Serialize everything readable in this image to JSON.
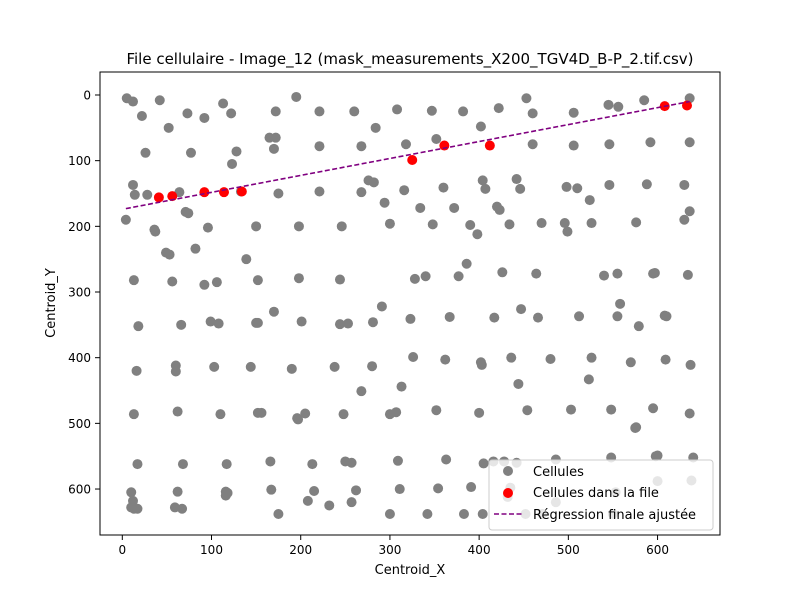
{
  "chart_data": {
    "type": "scatter",
    "title": "File cellulaire - Image_12 (mask_measurements_X200_TGV4D_B-P_2.tif.csv)",
    "xlabel": "Centroid_X",
    "ylabel": "Centroid_Y",
    "xlim": [
      -25,
      670
    ],
    "ylim": [
      670,
      -35
    ],
    "y_inverted": true,
    "x_ticks": [
      0,
      100,
      200,
      300,
      400,
      500,
      600
    ],
    "y_ticks": [
      0,
      100,
      200,
      300,
      400,
      500,
      600
    ],
    "grid": false,
    "legend_position": "lower right",
    "colors": {
      "cells": "#808080",
      "file": "#ff0000",
      "regression": "#800080"
    },
    "series": [
      {
        "name": "Cellules",
        "kind": "scatter",
        "points": [
          [
            5,
            5
          ],
          [
            12,
            10
          ],
          [
            42,
            8
          ],
          [
            73,
            28
          ],
          [
            92,
            35
          ],
          [
            113,
            13
          ],
          [
            122,
            28
          ],
          [
            195,
            3
          ],
          [
            172,
            25
          ],
          [
            221,
            25
          ],
          [
            260,
            25
          ],
          [
            308,
            22
          ],
          [
            347,
            24
          ],
          [
            382,
            25
          ],
          [
            422,
            20
          ],
          [
            453,
            5
          ],
          [
            460,
            28
          ],
          [
            506,
            27
          ],
          [
            545,
            15
          ],
          [
            556,
            18
          ],
          [
            585,
            8
          ],
          [
            636,
            5
          ],
          [
            22,
            32
          ],
          [
            52,
            50
          ],
          [
            77,
            88
          ],
          [
            26,
            88
          ],
          [
            128,
            86
          ],
          [
            123,
            105
          ],
          [
            165,
            65
          ],
          [
            172,
            65
          ],
          [
            170,
            82
          ],
          [
            221,
            78
          ],
          [
            284,
            50
          ],
          [
            268,
            78
          ],
          [
            318,
            75
          ],
          [
            352,
            67
          ],
          [
            402,
            48
          ],
          [
            460,
            75
          ],
          [
            506,
            77
          ],
          [
            546,
            75
          ],
          [
            592,
            72
          ],
          [
            636,
            72
          ],
          [
            12,
            137
          ],
          [
            14,
            152
          ],
          [
            28,
            152
          ],
          [
            64,
            148
          ],
          [
            71,
            178
          ],
          [
            74,
            180
          ],
          [
            133,
            147
          ],
          [
            175,
            150
          ],
          [
            221,
            147
          ],
          [
            268,
            148
          ],
          [
            276,
            130
          ],
          [
            282,
            133
          ],
          [
            294,
            164
          ],
          [
            316,
            145
          ],
          [
            334,
            172
          ],
          [
            348,
            197
          ],
          [
            360,
            141
          ],
          [
            372,
            172
          ],
          [
            404,
            130
          ],
          [
            407,
            143
          ],
          [
            420,
            170
          ],
          [
            423,
            175
          ],
          [
            434,
            197
          ],
          [
            442,
            128
          ],
          [
            446,
            143
          ],
          [
            470,
            195
          ],
          [
            496,
            195
          ],
          [
            498,
            140
          ],
          [
            510,
            142
          ],
          [
            524,
            160
          ],
          [
            526,
            195
          ],
          [
            546,
            137
          ],
          [
            588,
            136
          ],
          [
            576,
            194
          ],
          [
            630,
            137
          ],
          [
            630,
            190
          ],
          [
            636,
            177
          ],
          [
            4,
            190
          ],
          [
            36,
            205
          ],
          [
            37,
            208
          ],
          [
            49,
            240
          ],
          [
            53,
            243
          ],
          [
            82,
            234
          ],
          [
            96,
            202
          ],
          [
            106,
            285
          ],
          [
            92,
            289
          ],
          [
            13,
            282
          ],
          [
            56,
            284
          ],
          [
            139,
            250
          ],
          [
            150,
            200
          ],
          [
            152,
            282
          ],
          [
            198,
            200
          ],
          [
            198,
            279
          ],
          [
            246,
            200
          ],
          [
            244,
            281
          ],
          [
            300,
            196
          ],
          [
            328,
            280
          ],
          [
            340,
            276
          ],
          [
            377,
            276
          ],
          [
            386,
            257
          ],
          [
            390,
            198
          ],
          [
            398,
            212
          ],
          [
            426,
            270
          ],
          [
            464,
            272
          ],
          [
            499,
            208
          ],
          [
            540,
            275
          ],
          [
            555,
            272
          ],
          [
            558,
            318
          ],
          [
            595,
            272
          ],
          [
            597,
            271
          ],
          [
            634,
            274
          ],
          [
            18,
            352
          ],
          [
            66,
            350
          ],
          [
            99,
            345
          ],
          [
            108,
            348
          ],
          [
            150,
            347
          ],
          [
            152,
            347
          ],
          [
            170,
            330
          ],
          [
            201,
            345
          ],
          [
            244,
            349
          ],
          [
            253,
            348
          ],
          [
            281,
            346
          ],
          [
            291,
            322
          ],
          [
            323,
            341
          ],
          [
            367,
            338
          ],
          [
            417,
            339
          ],
          [
            447,
            326
          ],
          [
            466,
            339
          ],
          [
            512,
            337
          ],
          [
            555,
            337
          ],
          [
            579,
            352
          ],
          [
            608,
            336
          ],
          [
            610,
            337
          ],
          [
            16,
            420
          ],
          [
            60,
            412
          ],
          [
            60,
            421
          ],
          [
            103,
            414
          ],
          [
            144,
            414
          ],
          [
            190,
            417
          ],
          [
            238,
            414
          ],
          [
            280,
            413
          ],
          [
            326,
            399
          ],
          [
            362,
            403
          ],
          [
            402,
            407
          ],
          [
            403,
            411
          ],
          [
            436,
            400
          ],
          [
            480,
            402
          ],
          [
            526,
            400
          ],
          [
            570,
            407
          ],
          [
            609,
            403
          ],
          [
            637,
            411
          ],
          [
            13,
            486
          ],
          [
            62,
            482
          ],
          [
            110,
            486
          ],
          [
            152,
            484
          ],
          [
            156,
            484
          ],
          [
            196,
            492
          ],
          [
            205,
            485
          ],
          [
            197,
            494
          ],
          [
            248,
            486
          ],
          [
            268,
            451
          ],
          [
            300,
            486
          ],
          [
            307,
            483
          ],
          [
            313,
            444
          ],
          [
            352,
            480
          ],
          [
            400,
            484
          ],
          [
            444,
            440
          ],
          [
            454,
            480
          ],
          [
            503,
            479
          ],
          [
            523,
            433
          ],
          [
            548,
            479
          ],
          [
            595,
            477
          ],
          [
            636,
            485
          ],
          [
            576,
            506
          ],
          [
            575,
            507
          ],
          [
            17,
            562
          ],
          [
            68,
            562
          ],
          [
            117,
            562
          ],
          [
            166,
            558
          ],
          [
            213,
            562
          ],
          [
            250,
            558
          ],
          [
            257,
            560
          ],
          [
            309,
            557
          ],
          [
            363,
            555
          ],
          [
            405,
            561
          ],
          [
            416,
            558
          ],
          [
            428,
            558
          ],
          [
            442,
            560
          ],
          [
            486,
            555
          ],
          [
            548,
            552
          ],
          [
            598,
            550
          ],
          [
            600,
            549
          ],
          [
            640,
            552
          ],
          [
            10,
            605
          ],
          [
            12,
            618
          ],
          [
            13,
            630
          ],
          [
            10,
            628
          ],
          [
            17,
            630
          ],
          [
            59,
            628
          ],
          [
            62,
            604
          ],
          [
            67,
            630
          ],
          [
            116,
            604
          ],
          [
            118,
            606
          ],
          [
            116,
            610
          ],
          [
            167,
            601
          ],
          [
            175,
            638
          ],
          [
            208,
            618
          ],
          [
            215,
            603
          ],
          [
            232,
            625
          ],
          [
            257,
            620
          ],
          [
            262,
            602
          ],
          [
            300,
            638
          ],
          [
            311,
            600
          ],
          [
            342,
            638
          ],
          [
            354,
            599
          ],
          [
            383,
            638
          ],
          [
            391,
            597
          ],
          [
            404,
            638
          ],
          [
            432,
            612
          ],
          [
            435,
            598
          ],
          [
            452,
            638
          ],
          [
            471,
            638
          ],
          [
            486,
            620
          ],
          [
            550,
            638
          ],
          [
            553,
            605
          ],
          [
            600,
            588
          ],
          [
            638,
            587
          ]
        ]
      },
      {
        "name": "Cellules dans la file",
        "kind": "scatter",
        "points": [
          [
            41,
            156
          ],
          [
            56,
            154
          ],
          [
            92,
            148
          ],
          [
            114,
            148
          ],
          [
            134,
            147
          ],
          [
            325,
            99
          ],
          [
            361,
            77
          ],
          [
            412,
            77
          ],
          [
            608,
            17
          ],
          [
            633,
            16
          ]
        ]
      },
      {
        "name": "Régression finale ajustée",
        "kind": "line",
        "style": "dashed",
        "points": [
          [
            4,
            173
          ],
          [
            636,
            10
          ]
        ]
      }
    ]
  }
}
